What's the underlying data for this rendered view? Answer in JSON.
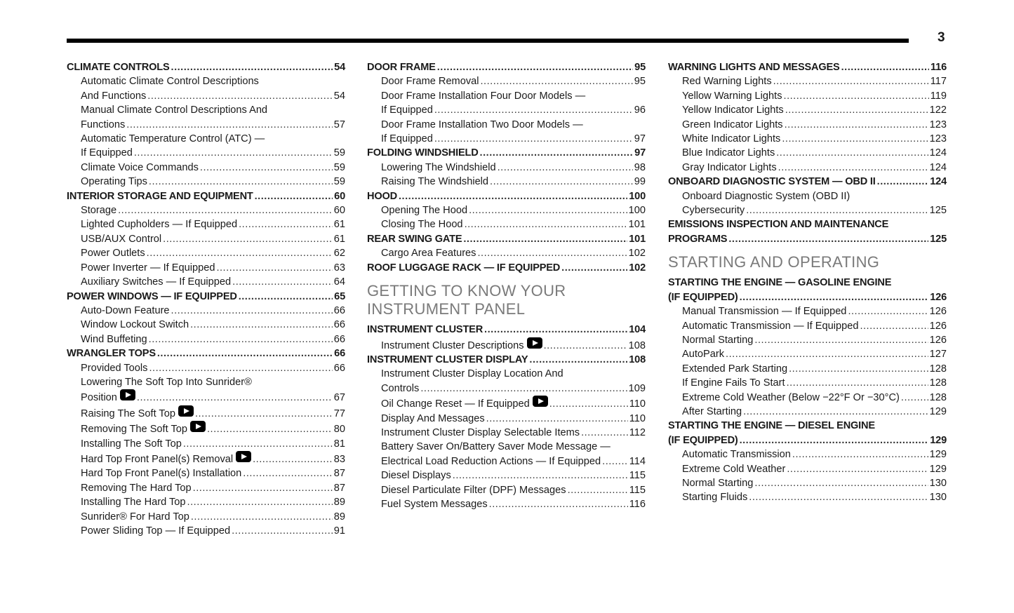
{
  "page_number": "3",
  "columns": [
    {
      "entries": [
        {
          "type": "h",
          "lines": [
            "CLIMATE CONTROLS"
          ],
          "page": "54"
        },
        {
          "type": "s",
          "lines": [
            "Automatic Climate Control Descriptions",
            "And Functions"
          ],
          "page": "54"
        },
        {
          "type": "s",
          "lines": [
            "Manual Climate Control Descriptions And",
            "Functions"
          ],
          "page": "57"
        },
        {
          "type": "s",
          "lines": [
            "Automatic Temperature Control (ATC) —",
            "If Equipped"
          ],
          "page": "59"
        },
        {
          "type": "s",
          "lines": [
            "Climate Voice Commands"
          ],
          "page": "59"
        },
        {
          "type": "s",
          "lines": [
            "Operating Tips"
          ],
          "page": "59"
        },
        {
          "type": "h",
          "lines": [
            "INTERIOR STORAGE AND EQUIPMENT"
          ],
          "page": "60"
        },
        {
          "type": "s",
          "lines": [
            "Storage"
          ],
          "page": "60"
        },
        {
          "type": "s",
          "lines": [
            "Lighted Cupholders — If Equipped"
          ],
          "page": "61"
        },
        {
          "type": "s",
          "lines": [
            "USB/AUX Control"
          ],
          "page": "61"
        },
        {
          "type": "s",
          "lines": [
            "Power Outlets"
          ],
          "page": "62"
        },
        {
          "type": "s",
          "lines": [
            "Power Inverter — If Equipped"
          ],
          "page": "63"
        },
        {
          "type": "s",
          "lines": [
            "Auxiliary Switches — If Equipped"
          ],
          "page": "64"
        },
        {
          "type": "h",
          "lines": [
            "POWER WINDOWS — IF EQUIPPED"
          ],
          "page": "65"
        },
        {
          "type": "s",
          "lines": [
            "Auto-Down Feature"
          ],
          "page": "66"
        },
        {
          "type": "s",
          "lines": [
            "Window Lockout Switch"
          ],
          "page": "66"
        },
        {
          "type": "s",
          "lines": [
            "Wind Buffeting"
          ],
          "page": "66"
        },
        {
          "type": "h",
          "lines": [
            "WRANGLER TOPS"
          ],
          "page": "66"
        },
        {
          "type": "s",
          "lines": [
            "Provided Tools"
          ],
          "page": "66"
        },
        {
          "type": "s",
          "lines": [
            "Lowering The Soft Top Into Sunrider®",
            "Position"
          ],
          "page": "67",
          "video": true
        },
        {
          "type": "s",
          "lines": [
            "Raising The Soft Top"
          ],
          "page": "77",
          "video": true
        },
        {
          "type": "s",
          "lines": [
            "Removing The Soft Top"
          ],
          "page": "80",
          "video": true
        },
        {
          "type": "s",
          "lines": [
            "Installing The Soft Top"
          ],
          "page": "81"
        },
        {
          "type": "s",
          "lines": [
            "Hard Top Front Panel(s) Removal"
          ],
          "page": "83",
          "video": true
        },
        {
          "type": "s",
          "lines": [
            "Hard Top Front Panel(s) Installation"
          ],
          "page": "87"
        },
        {
          "type": "s",
          "lines": [
            "Removing The Hard Top"
          ],
          "page": "87"
        },
        {
          "type": "s",
          "lines": [
            "Installing The Hard Top"
          ],
          "page": "89"
        },
        {
          "type": "s",
          "lines": [
            "Sunrider® For Hard Top"
          ],
          "page": "89"
        },
        {
          "type": "s",
          "lines": [
            "Power Sliding Top — If Equipped"
          ],
          "page": "91"
        }
      ]
    },
    {
      "entries": [
        {
          "type": "h",
          "lines": [
            "DOOR FRAME"
          ],
          "page": "95"
        },
        {
          "type": "s",
          "lines": [
            "Door Frame Removal"
          ],
          "page": "95"
        },
        {
          "type": "s",
          "lines": [
            "Door Frame Installation Four Door Models —",
            "If Equipped"
          ],
          "page": "96"
        },
        {
          "type": "s",
          "lines": [
            "Door Frame Installation Two Door Models —",
            "If Equipped"
          ],
          "page": "97"
        },
        {
          "type": "h",
          "lines": [
            "FOLDING WINDSHIELD"
          ],
          "page": "97"
        },
        {
          "type": "s",
          "lines": [
            "Lowering The Windshield"
          ],
          "page": "98"
        },
        {
          "type": "s",
          "lines": [
            "Raising The Windshield"
          ],
          "page": "99"
        },
        {
          "type": "h",
          "lines": [
            "HOOD"
          ],
          "page": "100"
        },
        {
          "type": "s",
          "lines": [
            "Opening The Hood"
          ],
          "page": "100"
        },
        {
          "type": "s",
          "lines": [
            "Closing The Hood"
          ],
          "page": "101"
        },
        {
          "type": "h",
          "lines": [
            "REAR SWING GATE"
          ],
          "page": "101"
        },
        {
          "type": "s",
          "lines": [
            "Cargo Area Features"
          ],
          "page": "102"
        },
        {
          "type": "h",
          "lines": [
            "ROOF LUGGAGE RACK — IF EQUIPPED"
          ],
          "page": "102"
        },
        {
          "type": "section",
          "lines": [
            "GETTING TO KNOW YOUR",
            "INSTRUMENT PANEL"
          ]
        },
        {
          "type": "h",
          "lines": [
            "INSTRUMENT CLUSTER"
          ],
          "page": "104"
        },
        {
          "type": "s",
          "lines": [
            "Instrument Cluster Descriptions"
          ],
          "page": "108",
          "video": true
        },
        {
          "type": "h",
          "lines": [
            "INSTRUMENT CLUSTER DISPLAY"
          ],
          "page": "108"
        },
        {
          "type": "s",
          "lines": [
            "Instrument Cluster Display Location And",
            "Controls"
          ],
          "page": "109"
        },
        {
          "type": "s",
          "lines": [
            "Oil Change Reset — If Equipped"
          ],
          "page": "110",
          "video": true
        },
        {
          "type": "s",
          "lines": [
            "Display And Messages"
          ],
          "page": "110"
        },
        {
          "type": "s",
          "lines": [
            "Instrument Cluster Display Selectable Items"
          ],
          "page": "112"
        },
        {
          "type": "s",
          "lines": [
            "Battery Saver On/Battery Saver Mode Message —",
            "Electrical Load Reduction Actions — If Equipped"
          ],
          "page": "114"
        },
        {
          "type": "s",
          "lines": [
            "Diesel Displays"
          ],
          "page": "115"
        },
        {
          "type": "s",
          "lines": [
            "Diesel Particulate Filter (DPF) Messages"
          ],
          "page": "115"
        },
        {
          "type": "s",
          "lines": [
            "Fuel System Messages"
          ],
          "page": "116"
        }
      ]
    },
    {
      "entries": [
        {
          "type": "h",
          "lines": [
            "WARNING LIGHTS AND MESSAGES"
          ],
          "page": "116"
        },
        {
          "type": "s",
          "lines": [
            "Red Warning Lights"
          ],
          "page": "117"
        },
        {
          "type": "s",
          "lines": [
            "Yellow Warning Lights"
          ],
          "page": "119"
        },
        {
          "type": "s",
          "lines": [
            "Yellow Indicator Lights"
          ],
          "page": "122"
        },
        {
          "type": "s",
          "lines": [
            "Green Indicator Lights"
          ],
          "page": "123"
        },
        {
          "type": "s",
          "lines": [
            "White Indicator Lights"
          ],
          "page": "123"
        },
        {
          "type": "s",
          "lines": [
            "Blue Indicator Lights"
          ],
          "page": "124"
        },
        {
          "type": "s",
          "lines": [
            "Gray Indicator Lights"
          ],
          "page": "124"
        },
        {
          "type": "h",
          "lines": [
            "ONBOARD DIAGNOSTIC SYSTEM — OBD II"
          ],
          "page": "124"
        },
        {
          "type": "s",
          "lines": [
            "Onboard Diagnostic System (OBD II)",
            "Cybersecurity"
          ],
          "page": "125"
        },
        {
          "type": "h",
          "lines": [
            "EMISSIONS INSPECTION AND MAINTENANCE",
            "PROGRAMS"
          ],
          "page": "125"
        },
        {
          "type": "section",
          "lines": [
            "STARTING AND OPERATING"
          ]
        },
        {
          "type": "h",
          "lines": [
            "STARTING THE ENGINE — GASOLINE ENGINE",
            "(IF EQUIPPED)"
          ],
          "page": "126"
        },
        {
          "type": "s",
          "lines": [
            "Manual Transmission — If Equipped"
          ],
          "page": "126"
        },
        {
          "type": "s",
          "lines": [
            "Automatic Transmission — If Equipped"
          ],
          "page": "126"
        },
        {
          "type": "s",
          "lines": [
            "Normal Starting"
          ],
          "page": "126"
        },
        {
          "type": "s",
          "lines": [
            "AutoPark"
          ],
          "page": "127"
        },
        {
          "type": "s",
          "lines": [
            "Extended Park Starting"
          ],
          "page": "128"
        },
        {
          "type": "s",
          "lines": [
            "If Engine Fails To Start"
          ],
          "page": "128"
        },
        {
          "type": "s",
          "lines": [
            "Extreme Cold Weather (Below −22°F Or −30°C)"
          ],
          "page": "128"
        },
        {
          "type": "s",
          "lines": [
            "After Starting"
          ],
          "page": "129"
        },
        {
          "type": "h",
          "lines": [
            "STARTING THE ENGINE — DIESEL ENGINE",
            "(IF EQUIPPED)"
          ],
          "page": "129"
        },
        {
          "type": "s",
          "lines": [
            "Automatic Transmission"
          ],
          "page": "129"
        },
        {
          "type": "s",
          "lines": [
            "Extreme Cold Weather"
          ],
          "page": "129"
        },
        {
          "type": "s",
          "lines": [
            "Normal Starting"
          ],
          "page": "130"
        },
        {
          "type": "s",
          "lines": [
            "Starting Fluids"
          ],
          "page": "130"
        }
      ]
    }
  ]
}
